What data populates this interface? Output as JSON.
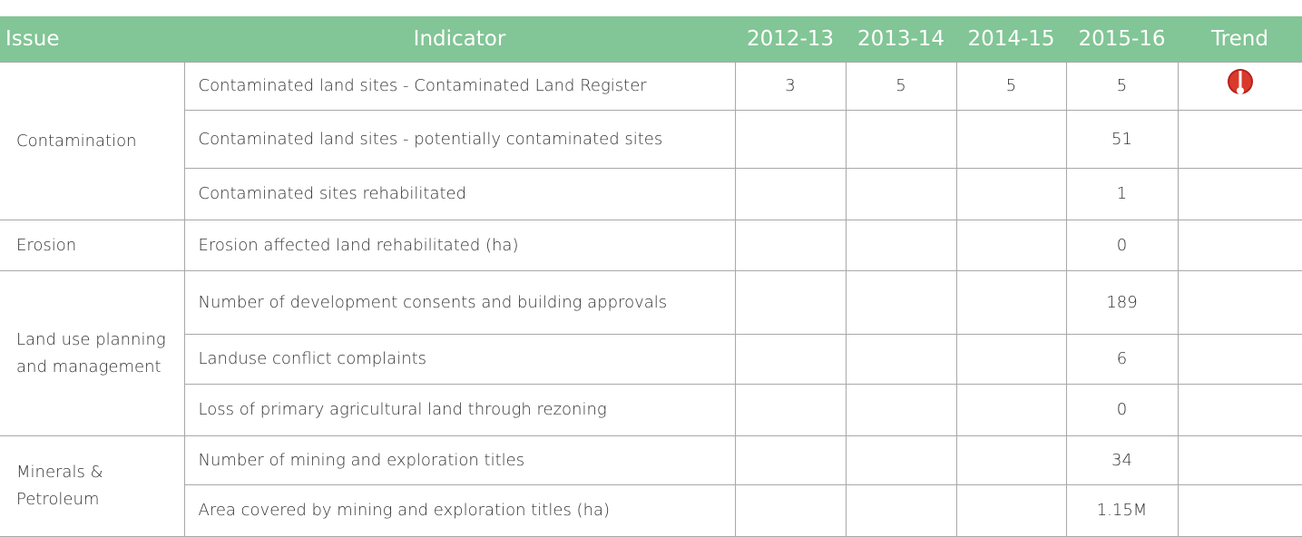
{
  "header": [
    "Issue",
    "Indicator",
    "2012-13",
    "2013-14",
    "2014-15",
    "2015-16",
    "Trend"
  ],
  "groups": [
    {
      "issue": "Contamination",
      "rows": [
        {
          "indicator": "Contaminated land sites - Contaminated Land Register",
          "values": [
            3,
            5,
            5,
            5
          ]
        },
        {
          "indicator": "Contaminated land sites - potentially contaminated sites",
          "values": [
            null,
            null,
            null,
            51
          ]
        },
        {
          "indicator": "Contaminated sites rehabilitated",
          "values": [
            null,
            null,
            null,
            1
          ]
        }
      ]
    },
    {
      "issue": "Erosion",
      "rows": [
        {
          "indicator": "Erosion affected land rehabilitated (ha)",
          "values": [
            null,
            null,
            null,
            0
          ]
        }
      ]
    },
    {
      "issue": "Land use planning and management",
      "rows": [
        {
          "indicator": "Number of development consents and building approvals",
          "values": [
            null,
            null,
            null,
            189
          ]
        },
        {
          "indicator": "Landuse conflict complaints",
          "values": [
            null,
            null,
            null,
            6
          ]
        },
        {
          "indicator": "Loss of primary agricultural land through rezoning",
          "values": [
            null,
            null,
            null,
            0
          ]
        }
      ]
    },
    {
      "issue": "Minerals & Petroleum",
      "rows": [
        {
          "indicator": "Number of mining and exploration titles",
          "values": [
            null,
            null,
            null,
            34
          ]
        },
        {
          "indicator": "Area covered by mining and exploration titles (ha)",
          "values": [
            null,
            null,
            null,
            "1.15M"
          ]
        }
      ]
    }
  ]
}
